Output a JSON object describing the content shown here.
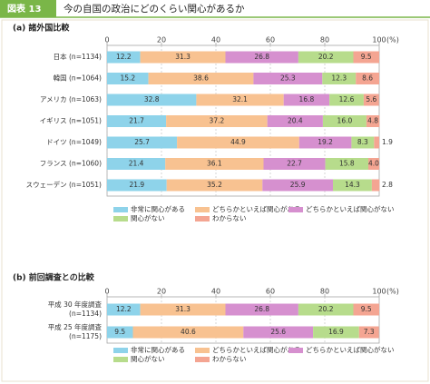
{
  "header": {
    "label": "図表 13",
    "title": "今の自国の政治にどのくらい関心があるか"
  },
  "chart_data": [
    {
      "type": "stacked-bar-horizontal",
      "title": "(a) 諸外国比較",
      "unit": "(%)",
      "categories": [
        "日本 (n=1134)",
        "韓国 (n=1064)",
        "アメリカ (n=1063)",
        "イギリス (n=1051)",
        "ドイツ (n=1049)",
        "フランス (n=1060)",
        "スウェーデン (n=1051)"
      ],
      "series": [
        {
          "name": "非常に関心がある",
          "color": "#8ed3ea",
          "values": [
            12.2,
            15.2,
            32.8,
            21.7,
            25.7,
            21.4,
            21.9
          ]
        },
        {
          "name": "どちらかといえば関心がある",
          "color": "#f8c291",
          "values": [
            31.3,
            38.6,
            32.1,
            37.2,
            44.9,
            36.1,
            35.2
          ]
        },
        {
          "name": "どちらかといえば関心がない",
          "color": "#d690cf",
          "values": [
            26.8,
            25.3,
            16.8,
            20.4,
            19.2,
            22.7,
            25.9
          ]
        },
        {
          "name": "関心がない",
          "color": "#b7dc8c",
          "values": [
            20.2,
            12.3,
            12.6,
            16.0,
            8.3,
            15.8,
            14.3
          ],
          "value_labels": [
            "20.2",
            "12.3",
            "12.6",
            "16.0",
            "8.3",
            "15.8",
            "14.3"
          ]
        },
        {
          "name": "わからない",
          "color": "#f4a592",
          "values": [
            9.5,
            8.6,
            5.6,
            4.8,
            1.9,
            4.0,
            2.8
          ],
          "value_labels": [
            "9.5",
            "8.6",
            "5.6",
            "4.8",
            "1.9",
            "4.0",
            "2.8"
          ]
        }
      ],
      "xlim": [
        0,
        100
      ],
      "xticks": [
        0,
        20,
        40,
        60,
        80,
        100
      ],
      "grid": true
    },
    {
      "type": "stacked-bar-horizontal",
      "title": "(b) 前回調査との比較",
      "unit": "(%)",
      "categories": [
        [
          "平成 30 年度調査",
          "(n=1134)"
        ],
        [
          "平成 25 年度調査",
          "(n=1175)"
        ]
      ],
      "series": [
        {
          "name": "非常に関心がある",
          "color": "#8ed3ea",
          "values": [
            12.2,
            9.5
          ]
        },
        {
          "name": "どちらかといえば関心がある",
          "color": "#f8c291",
          "values": [
            31.3,
            40.6
          ]
        },
        {
          "name": "どちらかといえば関心がない",
          "color": "#d690cf",
          "values": [
            26.8,
            25.6
          ]
        },
        {
          "name": "関心がない",
          "color": "#b7dc8c",
          "values": [
            20.2,
            16.9
          ]
        },
        {
          "name": "わからない",
          "color": "#f4a592",
          "values": [
            9.5,
            7.3
          ]
        }
      ],
      "xlim": [
        0,
        100
      ],
      "xticks": [
        0,
        20,
        40,
        60,
        80,
        100
      ],
      "grid": true
    }
  ]
}
